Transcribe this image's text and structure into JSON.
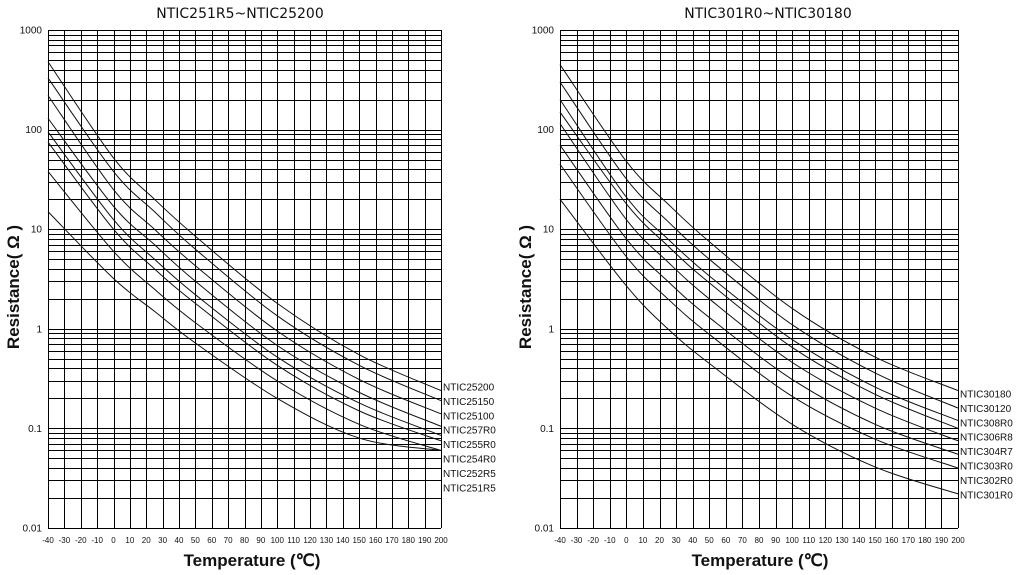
{
  "chart_data": [
    {
      "type": "line",
      "title": "NTIC251R5~NTIC25200",
      "xlabel": "Temperature (℃)",
      "ylabel": "Resistance( Ω )",
      "xlim": [
        -40,
        200
      ],
      "ylim": [
        0.01,
        1000
      ],
      "yscale": "log",
      "grid": true,
      "x_ticks": [
        "-40",
        "-30",
        "-20",
        "-10",
        "0",
        "10",
        "20",
        "30",
        "40",
        "50",
        "60",
        "70",
        "80",
        "90",
        "100",
        "110",
        "120",
        "130",
        "140",
        "150",
        "160",
        "170",
        "180",
        "190",
        "200"
      ],
      "y_ticks": [
        "0.01",
        "0.1",
        "1",
        "10",
        "100",
        "1000"
      ],
      "legend_placement": "right",
      "x": [
        -40,
        0,
        25,
        50,
        100,
        150,
        200
      ],
      "series": [
        {
          "name": "NTIC25200",
          "values": [
            480,
            52,
            20,
            8.5,
            1.8,
            0.55,
            0.24
          ]
        },
        {
          "name": "NTIC25150",
          "values": [
            330,
            38,
            15,
            6.3,
            1.35,
            0.43,
            0.19
          ]
        },
        {
          "name": "NTIC25100",
          "values": [
            220,
            25,
            10,
            4.3,
            0.95,
            0.31,
            0.14
          ]
        },
        {
          "name": "NTIC257R0",
          "values": [
            130,
            17,
            7,
            3.0,
            0.68,
            0.23,
            0.105
          ]
        },
        {
          "name": "NTIC255R0",
          "values": [
            95,
            12.5,
            5,
            2.2,
            0.52,
            0.18,
            0.085
          ]
        },
        {
          "name": "NTIC254R0",
          "values": [
            75,
            10,
            4,
            1.8,
            0.43,
            0.15,
            0.075
          ]
        },
        {
          "name": "NTIC252R5",
          "values": [
            38,
            6,
            2.5,
            1.15,
            0.3,
            0.11,
            0.06
          ]
        },
        {
          "name": "NTIC251R5",
          "values": [
            15,
            3.2,
            1.5,
            0.72,
            0.2,
            0.08,
            0.06
          ]
        }
      ]
    },
    {
      "type": "line",
      "title": "NTIC301R0~NTIC30180",
      "xlabel": "Temperature (℃)",
      "ylabel": "Resistance( Ω )",
      "xlim": [
        -40,
        200
      ],
      "ylim": [
        0.01,
        1000
      ],
      "yscale": "log",
      "grid": true,
      "x_ticks": [
        "-40",
        "-30",
        "-20",
        "-10",
        "0",
        "10",
        "20",
        "30",
        "40",
        "50",
        "60",
        "70",
        "80",
        "90",
        "100",
        "110",
        "120",
        "130",
        "140",
        "150",
        "160",
        "170",
        "180",
        "190",
        "200"
      ],
      "y_ticks": [
        "0.01",
        "0.1",
        "1",
        "10",
        "100",
        "1000"
      ],
      "legend_placement": "right",
      "x": [
        -40,
        0,
        25,
        50,
        100,
        150,
        200
      ],
      "series": [
        {
          "name": "NTIC30180",
          "values": [
            450,
            48,
            18,
            7.5,
            1.6,
            0.52,
            0.24
          ]
        },
        {
          "name": "NTIC30120",
          "values": [
            300,
            32,
            12,
            5.0,
            1.1,
            0.36,
            0.16
          ]
        },
        {
          "name": "NTIC308R0",
          "values": [
            200,
            21,
            8,
            3.4,
            0.78,
            0.26,
            0.12
          ]
        },
        {
          "name": "NTIC306R8",
          "values": [
            150,
            18,
            6.8,
            2.9,
            0.65,
            0.22,
            0.1
          ]
        },
        {
          "name": "NTIC304R7",
          "values": [
            115,
            12.5,
            4.7,
            2.0,
            0.46,
            0.16,
            0.075
          ]
        },
        {
          "name": "NTIC303R0",
          "values": [
            70,
            8,
            3,
            1.3,
            0.31,
            0.11,
            0.055
          ]
        },
        {
          "name": "NTIC302R0",
          "values": [
            45,
            5.3,
            2,
            0.88,
            0.21,
            0.078,
            0.04
          ]
        },
        {
          "name": "NTIC301R0",
          "values": [
            20,
            2.7,
            1,
            0.45,
            0.11,
            0.041,
            0.022
          ]
        }
      ]
    }
  ]
}
